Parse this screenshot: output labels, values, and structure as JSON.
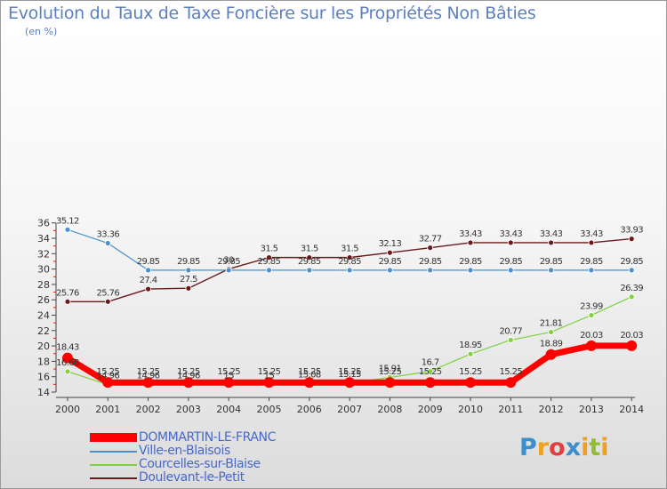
{
  "header": {
    "title": "Evolution du Taux de Taxe Foncière sur les Propriétés Non Bâties",
    "unit": "(en %)"
  },
  "logo": {
    "letters": [
      "P",
      "r",
      "o",
      "x",
      "i",
      "t",
      "i"
    ],
    "colors": [
      "#3a8fd0",
      "#f0a020",
      "#e04040",
      "#3a8fd0",
      "#f0a020",
      "#90c030",
      "#f0a020"
    ]
  },
  "chart_data": {
    "type": "line",
    "title": "Evolution du Taux de Taxe Foncière sur les Propriétés Non Bâties",
    "ylabel": "(en %)",
    "xlabel": "",
    "x": [
      "2000",
      "2001",
      "2002",
      "2003",
      "2004",
      "2005",
      "2006",
      "2007",
      "2008",
      "2009",
      "2010",
      "2011",
      "2012",
      "2013",
      "2014"
    ],
    "ylim": [
      14,
      36
    ],
    "yticks": [
      14,
      16,
      18,
      20,
      22,
      24,
      26,
      28,
      30,
      32,
      34,
      36
    ],
    "ytick_labels": [
      "14",
      "16",
      "18",
      "20",
      "22",
      "24",
      "26",
      "28",
      "30",
      "32",
      "34",
      "36"
    ],
    "series": [
      {
        "name": "DOMMARTIN-LE-FRANC",
        "color": "#ff0000",
        "values": [
          18.43,
          15.25,
          15.25,
          15.25,
          15.25,
          15.25,
          15.25,
          15.25,
          15.25,
          15.25,
          15.25,
          15.25,
          18.89,
          20.03,
          20.03
        ],
        "labels": [
          "18.43",
          "15.25",
          "15.25",
          "15.25",
          "15.25",
          "15.25",
          "15.25",
          "15.25",
          "15.25",
          "15.25",
          "15.25",
          "15.25",
          "18.89",
          "20.03",
          "20.03"
        ]
      },
      {
        "name": "Ville-en-Blaisois",
        "color": "#4a90d0",
        "values": [
          35.12,
          33.36,
          29.85,
          29.85,
          29.85,
          29.85,
          29.85,
          29.85,
          29.85,
          29.85,
          29.85,
          29.85,
          29.85,
          29.85,
          29.85
        ],
        "labels": [
          "35.12",
          "33.36",
          "29.85",
          "29.85",
          "29.85",
          "29.85",
          "29.85",
          "29.85",
          "29.85",
          "29.85",
          "29.85",
          "29.85",
          "29.85",
          "29.85",
          "29.85"
        ]
      },
      {
        "name": "Courcelles-sur-Blaise",
        "color": "#80d040",
        "values": [
          16.68,
          14.96,
          14.96,
          14.96,
          15,
          15,
          15.08,
          15.15,
          15.91,
          16.7,
          18.95,
          20.77,
          21.81,
          23.99,
          26.39
        ],
        "labels": [
          "16.68",
          "14.96",
          "14.96",
          "14.96",
          "15",
          "15",
          "15.08",
          "15.15",
          "15.91",
          "16.7",
          "18.95",
          "20.77",
          "21.81",
          "23.99",
          "26.39"
        ]
      },
      {
        "name": "Doulevant-le-Petit",
        "color": "#6a1a1a",
        "values": [
          25.76,
          25.76,
          27.4,
          27.5,
          30,
          31.5,
          31.5,
          31.5,
          32.13,
          32.77,
          33.43,
          33.43,
          33.43,
          33.43,
          33.93
        ],
        "labels": [
          "25.76",
          "25.76",
          "27.4",
          "27.5",
          "30",
          "31.5",
          "31.5",
          "31.5",
          "32.13",
          "32.77",
          "33.43",
          "33.43",
          "33.43",
          "33.43",
          "33.93"
        ]
      }
    ]
  }
}
